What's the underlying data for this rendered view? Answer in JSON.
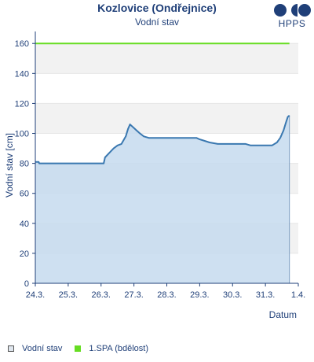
{
  "header": {
    "title": "Kozlovice (Ondřejnice)",
    "subtitle": "Vodní stav",
    "logo_text": "HPPS"
  },
  "legend": [
    {
      "label": "Vodní stav"
    },
    {
      "label": "1.SPA (bdělost)"
    }
  ],
  "colors": {
    "water_line": "#3a78b0",
    "water_fill": "#c5dbef",
    "spa_line": "#66dd22",
    "axis": "#1f3f78",
    "band": "#f2f2f2"
  },
  "chart_data": {
    "type": "area",
    "ylabel": "Vodní stav [cm]",
    "xlabel": "Datum",
    "ylim": [
      0,
      168
    ],
    "yticks": [
      0,
      20,
      40,
      60,
      80,
      100,
      120,
      140,
      160
    ],
    "xlim": [
      0,
      8
    ],
    "xticks": [
      {
        "x": 0,
        "label": "24.3."
      },
      {
        "x": 1,
        "label": "25.3."
      },
      {
        "x": 2,
        "label": "26.3."
      },
      {
        "x": 3,
        "label": "27.3."
      },
      {
        "x": 4,
        "label": "28.3."
      },
      {
        "x": 5,
        "label": "29.3."
      },
      {
        "x": 6,
        "label": "30.3."
      },
      {
        "x": 7,
        "label": "31.3."
      },
      {
        "x": 8,
        "label": "1.4."
      }
    ],
    "series": [
      {
        "name": "Vodní stav",
        "points": [
          [
            0.0,
            81
          ],
          [
            0.1,
            81
          ],
          [
            0.12,
            80
          ],
          [
            0.3,
            80
          ],
          [
            2.08,
            80
          ],
          [
            2.12,
            84
          ],
          [
            2.25,
            87
          ],
          [
            2.38,
            90
          ],
          [
            2.5,
            92
          ],
          [
            2.62,
            93
          ],
          [
            2.75,
            98
          ],
          [
            2.82,
            103
          ],
          [
            2.88,
            106
          ],
          [
            2.98,
            104
          ],
          [
            3.08,
            102
          ],
          [
            3.18,
            100
          ],
          [
            3.3,
            98
          ],
          [
            3.45,
            97
          ],
          [
            4.0,
            97
          ],
          [
            4.5,
            97
          ],
          [
            4.9,
            97
          ],
          [
            5.0,
            96
          ],
          [
            5.15,
            95
          ],
          [
            5.3,
            94
          ],
          [
            5.55,
            93
          ],
          [
            6.0,
            93
          ],
          [
            6.4,
            93
          ],
          [
            6.55,
            92
          ],
          [
            7.0,
            92
          ],
          [
            7.2,
            92
          ],
          [
            7.35,
            94
          ],
          [
            7.45,
            97
          ],
          [
            7.55,
            102
          ],
          [
            7.62,
            107
          ],
          [
            7.68,
            111
          ],
          [
            7.73,
            112
          ]
        ]
      },
      {
        "name": "1.SPA (bdělost)",
        "value": 160,
        "x_range": [
          0,
          7.73
        ]
      }
    ],
    "grid": "alternating horizontal bands",
    "legend_position": "bottom-left"
  }
}
